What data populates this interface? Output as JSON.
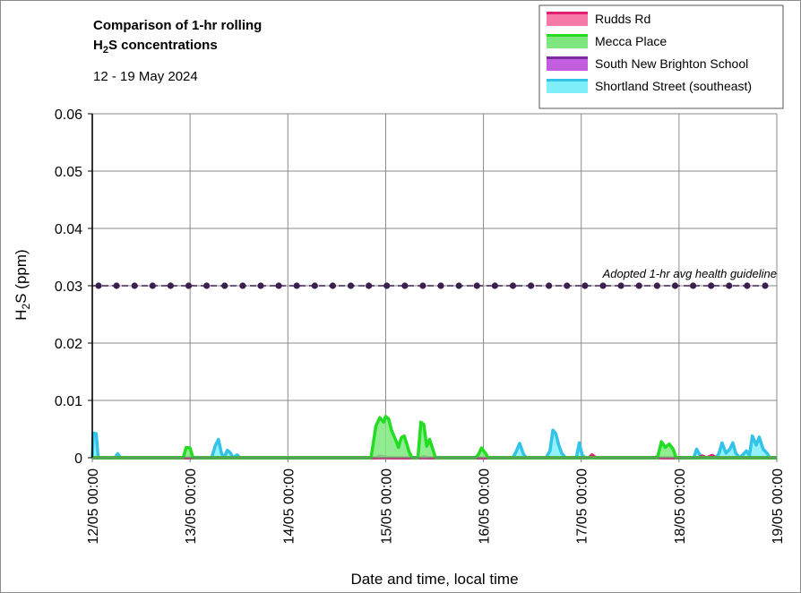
{
  "chart_data": {
    "type": "area",
    "title_line1": "Comparison of 1-hr rolling",
    "title_line2_prefix": "H",
    "title_line2_sub": "2",
    "title_line2_suffix": "S concentrations",
    "subtitle": "12 - 19 May 2024",
    "xlabel": "Date and time, local time",
    "ylabel_prefix": "H",
    "ylabel_sub": "2",
    "ylabel_suffix": "S (ppm)",
    "xlim": [
      0,
      7
    ],
    "ylim": [
      0,
      0.06
    ],
    "grid": true,
    "legend_position": "top-right",
    "y_ticks": [
      {
        "value": 0,
        "label": "0"
      },
      {
        "value": 0.01,
        "label": "0.01"
      },
      {
        "value": 0.02,
        "label": "0.02"
      },
      {
        "value": 0.03,
        "label": "0.03"
      },
      {
        "value": 0.04,
        "label": "0.04"
      },
      {
        "value": 0.05,
        "label": "0.05"
      },
      {
        "value": 0.06,
        "label": "0.06"
      }
    ],
    "x_ticks": [
      {
        "value": 0,
        "label": "12/05 00:00"
      },
      {
        "value": 1,
        "label": "13/05 00:00"
      },
      {
        "value": 2,
        "label": "14/05 00:00"
      },
      {
        "value": 3,
        "label": "15/05 00:00"
      },
      {
        "value": 4,
        "label": "16/05 00:00"
      },
      {
        "value": 5,
        "label": "17/05 00:00"
      },
      {
        "value": 6,
        "label": "18/05 00:00"
      },
      {
        "value": 7,
        "label": "19/05 00:00"
      }
    ],
    "guideline": {
      "label": "Adopted 1-hr avg health guideline",
      "value": 0.03,
      "color": "#3b1f4f"
    },
    "series": [
      {
        "name": "Rudds Rd",
        "line_color": "#e0206e",
        "fill_color": "#f57aa6",
        "points": [
          [
            0,
            0
          ],
          [
            5.08,
            0
          ],
          [
            5.11,
            0.0005
          ],
          [
            5.15,
            0
          ],
          [
            6.2,
            0
          ],
          [
            6.24,
            0.0003
          ],
          [
            6.28,
            0
          ],
          [
            6.34,
            0.0004
          ],
          [
            6.38,
            0
          ],
          [
            7,
            0
          ]
        ]
      },
      {
        "name": "Mecca Place",
        "line_color": "#22dd22",
        "fill_color": "#7ee87e",
        "points": [
          [
            0,
            0
          ],
          [
            0.93,
            0
          ],
          [
            0.96,
            0.0018
          ],
          [
            1.0,
            0.0017
          ],
          [
            1.03,
            0
          ],
          [
            2.85,
            0
          ],
          [
            2.9,
            0.0055
          ],
          [
            2.94,
            0.007
          ],
          [
            2.98,
            0.0062
          ],
          [
            3.0,
            0.0072
          ],
          [
            3.03,
            0.0068
          ],
          [
            3.06,
            0.0048
          ],
          [
            3.08,
            0.004
          ],
          [
            3.11,
            0.0028
          ],
          [
            3.13,
            0.0018
          ],
          [
            3.16,
            0.0035
          ],
          [
            3.19,
            0.0038
          ],
          [
            3.22,
            0.0022
          ],
          [
            3.24,
            0.001
          ],
          [
            3.27,
            0
          ],
          [
            3.33,
            0
          ],
          [
            3.36,
            0.0062
          ],
          [
            3.39,
            0.0058
          ],
          [
            3.42,
            0.002
          ],
          [
            3.45,
            0.0032
          ],
          [
            3.48,
            0.0016
          ],
          [
            3.51,
            0
          ],
          [
            3.92,
            0
          ],
          [
            3.95,
            0.0006
          ],
          [
            3.98,
            0.0017
          ],
          [
            4.02,
            0.0008
          ],
          [
            4.05,
            0
          ],
          [
            5.78,
            0
          ],
          [
            5.82,
            0.0028
          ],
          [
            5.86,
            0.0018
          ],
          [
            5.9,
            0.0024
          ],
          [
            5.94,
            0.0015
          ],
          [
            5.97,
            0
          ],
          [
            7,
            0
          ]
        ]
      },
      {
        "name": "South New Brighton School",
        "line_color": "#7a2d9c",
        "fill_color": "#c35ede",
        "points": [
          [
            0,
            0
          ],
          [
            2.9,
            0
          ],
          [
            2.94,
            0.0003
          ],
          [
            3.0,
            0.0001
          ],
          [
            3.04,
            0
          ],
          [
            3.36,
            0
          ],
          [
            3.39,
            0.0002
          ],
          [
            3.43,
            0
          ],
          [
            5.75,
            0
          ],
          [
            5.78,
            0.0002
          ],
          [
            5.82,
            0
          ],
          [
            7,
            0
          ]
        ]
      },
      {
        "name": "Shortland Street (southeast)",
        "line_color": "#33c2e8",
        "fill_color": "#7ff0fa",
        "points": [
          [
            0,
            0
          ],
          [
            0.01,
            0.0043
          ],
          [
            0.04,
            0.0042
          ],
          [
            0.06,
            0
          ],
          [
            0.23,
            0
          ],
          [
            0.26,
            0.0007
          ],
          [
            0.29,
            0
          ],
          [
            1.22,
            0
          ],
          [
            1.26,
            0.0022
          ],
          [
            1.29,
            0.0032
          ],
          [
            1.32,
            0.0008
          ],
          [
            1.35,
            0
          ],
          [
            1.38,
            0.0013
          ],
          [
            1.41,
            0.0009
          ],
          [
            1.44,
            0
          ],
          [
            1.48,
            0.0005
          ],
          [
            1.51,
            0
          ],
          [
            4.3,
            0
          ],
          [
            4.33,
            0.0009
          ],
          [
            4.37,
            0.0025
          ],
          [
            4.41,
            0.0006
          ],
          [
            4.44,
            0
          ],
          [
            4.64,
            0
          ],
          [
            4.68,
            0.0012
          ],
          [
            4.71,
            0.0048
          ],
          [
            4.74,
            0.0042
          ],
          [
            4.77,
            0.0022
          ],
          [
            4.8,
            0.0008
          ],
          [
            4.84,
            0
          ],
          [
            4.95,
            0
          ],
          [
            4.98,
            0.0026
          ],
          [
            5.01,
            0.0005
          ],
          [
            5.04,
            0
          ],
          [
            6.15,
            0
          ],
          [
            6.18,
            0.0015
          ],
          [
            6.21,
            0.0006
          ],
          [
            6.25,
            0
          ],
          [
            6.38,
            0
          ],
          [
            6.41,
            0.0008
          ],
          [
            6.44,
            0.0026
          ],
          [
            6.48,
            0.0008
          ],
          [
            6.52,
            0.0015
          ],
          [
            6.55,
            0.0026
          ],
          [
            6.58,
            0.0008
          ],
          [
            6.62,
            0
          ],
          [
            6.65,
            0.0005
          ],
          [
            6.69,
            0.0012
          ],
          [
            6.72,
            0.0004
          ],
          [
            6.75,
            0.0038
          ],
          [
            6.79,
            0.0022
          ],
          [
            6.82,
            0.0036
          ],
          [
            6.86,
            0.0015
          ],
          [
            6.9,
            0.0008
          ],
          [
            6.93,
            0
          ],
          [
            7,
            0
          ]
        ]
      }
    ]
  }
}
